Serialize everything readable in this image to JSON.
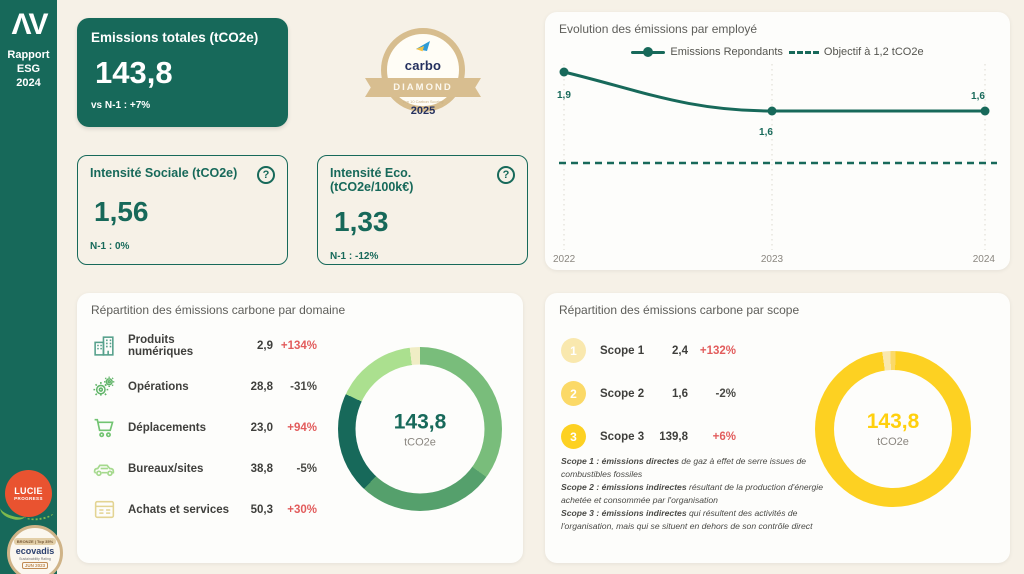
{
  "colors": {
    "teal": "#17695A",
    "red": "#E25C5C",
    "neutral": "#4A4A46",
    "yellow": "#FDD122",
    "page_bg": "#F6F1E7",
    "panel_bg": "#FDFDFB"
  },
  "sidebar": {
    "logo": "ΛV",
    "title_lines": [
      "Rapport",
      "ESG",
      "2024"
    ],
    "lucie_badge": {
      "line1": "LUCIE",
      "line2": "PROGRESS"
    },
    "ecovadis_badge": {
      "band": "BRONZE | Top 35%",
      "name": "ecovadis",
      "sub": "Sustainability Rating",
      "date": "JUN 2023"
    }
  },
  "kpi_total": {
    "title": "Emissions totales (tCO2e)",
    "value": "143,8",
    "delta": "vs N-1 : +7%"
  },
  "carbo_badge": {
    "brand": "carbo",
    "level": "DIAMOND",
    "small_text": "Top 10 Carbon Scoring",
    "year": "2025"
  },
  "kpi_social": {
    "title": "Intensité Sociale (tCO2e)",
    "value": "1,56",
    "delta": "N-1 : 0%",
    "help": "?"
  },
  "kpi_eco": {
    "title": "Intensité Eco. (tCO2e/100k€)",
    "value": "1,33",
    "delta": "N-1 : -12%",
    "help": "?"
  },
  "evolution": {
    "title": "Evolution des émissions par employé",
    "legend_series": "Emissions Repondants",
    "legend_target": "Objectif à 1,2 tCO2e",
    "years": [
      "2022",
      "2023",
      "2024"
    ],
    "values": [
      1.9,
      1.6,
      1.6
    ],
    "value_labels": [
      "1,9",
      "1,6",
      "1,6"
    ],
    "target_value": 1.2
  },
  "domaine": {
    "title": "Répartition des émissions carbone par domaine",
    "rows": [
      {
        "label": "Produits numériques",
        "value": "2,9",
        "delta": "+134%",
        "delta_color": "#E25C5C",
        "icon_color": "#55A08B"
      },
      {
        "label": "Opérations",
        "value": "28,8",
        "delta": "-31%",
        "delta_color": "#4A4A46",
        "icon_color": "#62B56A"
      },
      {
        "label": "Déplacements",
        "value": "23,0",
        "delta": "+94%",
        "delta_color": "#E25C5C",
        "icon_color": "#72C472"
      },
      {
        "label": "Bureaux/sites",
        "value": "38,8",
        "delta": "-5%",
        "delta_color": "#4A4A46",
        "icon_color": "#A5D98D"
      },
      {
        "label": "Achats et services",
        "value": "50,3",
        "delta": "+30%",
        "delta_color": "#E25C5C",
        "icon_color": "#E3D493"
      }
    ],
    "donut": {
      "center_value": "143,8",
      "center_unit": "tCO2e",
      "center_color": "#17695A",
      "segments": [
        {
          "label": "Achats et services",
          "value": 50.3,
          "color": "#79BD7B"
        },
        {
          "label": "Bureaux/sites",
          "value": 38.8,
          "color": "#55A06C"
        },
        {
          "label": "Opérations",
          "value": 28.8,
          "color": "#17695A"
        },
        {
          "label": "Déplacements",
          "value": 23.0,
          "color": "#ABE08F"
        },
        {
          "label": "Produits numériques",
          "value": 2.9,
          "color": "#F0EDC5"
        }
      ]
    }
  },
  "scope": {
    "title": "Répartition des émissions carbone par scope",
    "rows": [
      {
        "num": "1",
        "label": "Scope 1",
        "value": "2,4",
        "delta": "+132%",
        "delta_color": "#E25C5C",
        "color": "#F9E8AE"
      },
      {
        "num": "2",
        "label": "Scope 2",
        "value": "1,6",
        "delta": "-2%",
        "delta_color": "#4A4A46",
        "color": "#FBD967"
      },
      {
        "num": "3",
        "label": "Scope 3",
        "value": "139,8",
        "delta": "+6%",
        "delta_color": "#E25C5C",
        "color": "#FDD122"
      }
    ],
    "donut": {
      "center_value": "143,8",
      "center_unit": "tCO2e",
      "center_color": "#FFD00E",
      "segments": [
        {
          "label": "Scope 1",
          "value": 2.4,
          "color": "#F9E8AE"
        },
        {
          "label": "Scope 2",
          "value": 1.6,
          "color": "#FBD967"
        },
        {
          "label": "Scope 3",
          "value": 139.8,
          "color": "#FDD122"
        }
      ]
    },
    "footnotes": [
      {
        "bold": "Scope 1 : émissions directes",
        "rest": " de gaz à effet de serre issues de combustibles fossiles"
      },
      {
        "bold": "Scope 2 : émissions indirectes",
        "rest": " résultant de la production d'énergie achetée et consommée par l'organisation"
      },
      {
        "bold": "Scope 3 : émissions indirectes",
        "rest": " qui résultent des activités de l'organisation, mais qui se situent en dehors de son contrôle direct"
      }
    ]
  },
  "chart_data": [
    {
      "type": "line",
      "title": "Evolution des émissions par employé",
      "x": [
        "2022",
        "2023",
        "2024"
      ],
      "series": [
        {
          "name": "Emissions Repondants",
          "values": [
            1.9,
            1.6,
            1.6
          ]
        }
      ],
      "reference_line": {
        "label": "Objectif à 1,2 tCO2e",
        "value": 1.2
      },
      "ylim": [
        1.0,
        2.1
      ],
      "grid": "vertical-dotted",
      "legend_position": "top"
    },
    {
      "type": "pie",
      "subtype": "donut",
      "title": "Répartition des émissions carbone par domaine",
      "categories": [
        "Achats et services",
        "Bureaux/sites",
        "Opérations",
        "Déplacements",
        "Produits numériques"
      ],
      "values": [
        50.3,
        38.8,
        28.8,
        23.0,
        2.9
      ],
      "center_label": "143,8 tCO2e"
    },
    {
      "type": "pie",
      "subtype": "donut",
      "title": "Répartition des émissions carbone par scope",
      "categories": [
        "Scope 1",
        "Scope 2",
        "Scope 3"
      ],
      "values": [
        2.4,
        1.6,
        139.8
      ],
      "center_label": "143,8 tCO2e"
    }
  ]
}
